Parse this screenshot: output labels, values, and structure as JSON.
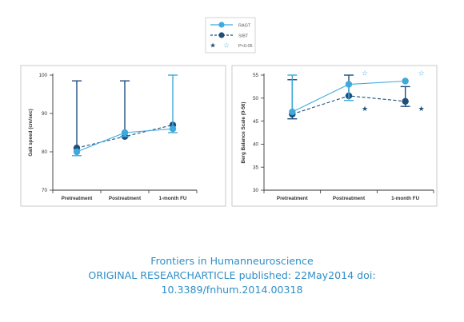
{
  "colors": {
    "ragt": "#3fa9dc",
    "sibt": "#1f4e7a",
    "frame": "#c9c9c9",
    "axis": "#333333",
    "caption": "#2f8fc7"
  },
  "legend": {
    "ragt": "RAGT",
    "sibt": "SIBT",
    "sig": "P<0.05"
  },
  "chart_data": [
    {
      "type": "line",
      "title": "",
      "xlabel": "",
      "ylabel": "Gait speed (cm/sec)",
      "categories": [
        "Pretreatment",
        "Postreatment",
        "1-month FU"
      ],
      "ylim": [
        70,
        100
      ],
      "yticks": [
        70,
        80,
        90,
        100
      ],
      "grid": false,
      "series": [
        {
          "name": "RAGT",
          "values": [
            80,
            85,
            86
          ],
          "error_upper": [
            null,
            null,
            100
          ],
          "error_lower": [
            79,
            84,
            85
          ],
          "line": "solid"
        },
        {
          "name": "SIBT",
          "values": [
            81,
            84,
            87
          ],
          "error_upper": [
            98.5,
            98.5,
            null
          ],
          "error_lower": [
            null,
            null,
            null
          ],
          "line": "dashed"
        }
      ],
      "significance": []
    },
    {
      "type": "line",
      "title": "",
      "xlabel": "",
      "ylabel": "Berg Balance Scale (0-56)",
      "categories": [
        "Pretreatment",
        "Postreatment",
        "1-month FU"
      ],
      "ylim": [
        30,
        55
      ],
      "yticks": [
        30,
        35,
        40,
        45,
        50,
        55
      ],
      "grid": false,
      "series": [
        {
          "name": "RAGT",
          "values": [
            47,
            53,
            53.7
          ],
          "error_upper": [
            55,
            null,
            null
          ],
          "error_lower": [
            null,
            49.5,
            null
          ],
          "line": "solid"
        },
        {
          "name": "SIBT",
          "values": [
            46.5,
            50.5,
            49.3
          ],
          "error_upper": [
            54,
            55,
            52.5
          ],
          "error_lower": [
            45.5,
            null,
            48.2
          ],
          "line": "dashed"
        }
      ],
      "significance": [
        {
          "index": 1,
          "series": "RAGT",
          "y": 55.4,
          "symbol": "☆"
        },
        {
          "index": 1,
          "series": "SIBT",
          "y": 47.7,
          "symbol": "★"
        },
        {
          "index": 2,
          "series": "RAGT",
          "y": 55.4,
          "symbol": "☆"
        },
        {
          "index": 2,
          "series": "SIBT",
          "y": 47.7,
          "symbol": "★"
        }
      ]
    }
  ],
  "caption": {
    "line1": "Frontiers in Humanneuroscience",
    "line2": "ORIGINAL RESEARCHARTICLE published: 22May2014 doi:",
    "line3": "10.3389/fnhum.2014.00318"
  }
}
